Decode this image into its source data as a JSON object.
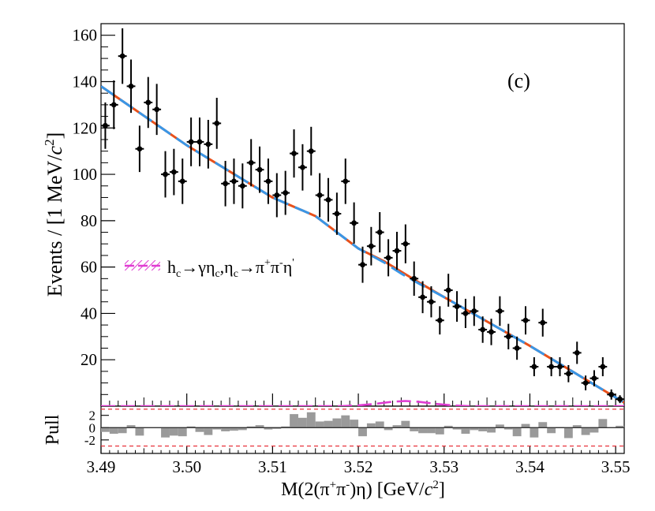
{
  "chart_data": {
    "type": "scatter",
    "panel_label": "(c)",
    "ylabel_main": "Events / [1 MeV/",
    "ylabel_c": "c",
    "ylabel_exp": "2",
    "ylabel_close": "]",
    "xlabel_base": "M(2(",
    "xlabel_pi1": "π",
    "xlabel_plus": "+",
    "xlabel_pi2": "π",
    "xlabel_minus": "-",
    "xlabel_eta": ")η) [GeV/",
    "xlabel_c": "c",
    "xlabel_exp": "2",
    "xlabel_close": "]",
    "pull_label": "Pull",
    "xlim": [
      3.49,
      3.551
    ],
    "ylim": [
      0,
      165
    ],
    "pull_ylim": [
      -4.2,
      3.5
    ],
    "x_ticks": [
      3.49,
      3.5,
      3.51,
      3.52,
      3.53,
      3.54,
      3.55
    ],
    "x_tick_labels": [
      "3.49",
      "3.50",
      "3.51",
      "3.52",
      "3.53",
      "3.54",
      "3.55"
    ],
    "y_ticks": [
      20,
      40,
      60,
      80,
      100,
      120,
      140,
      160
    ],
    "y_tick_labels": [
      "20",
      "40",
      "60",
      "80",
      "100",
      "120",
      "140",
      "160"
    ],
    "pull_ticks": [
      2,
      0,
      -2
    ],
    "pull_tick_labels": [
      "2",
      "0",
      "-2"
    ],
    "pull_ref_lines": [
      3,
      -3
    ],
    "legend": {
      "h": "h",
      "h_sub": "c",
      "arrow1": "→γη",
      "eta_sub": "c",
      "mid": ",η",
      "eta2_sub": "c",
      "arrow2": "→π",
      "sup1": "+",
      "pi": "π",
      "sup2": "-",
      "eta": "η",
      "sup3": "'"
    },
    "series": [
      {
        "name": "data",
        "x": [
          3.4905,
          3.4915,
          3.4925,
          3.4935,
          3.4945,
          3.4955,
          3.4965,
          3.4975,
          3.4985,
          3.4995,
          3.5005,
          3.5015,
          3.5025,
          3.5035,
          3.5045,
          3.5055,
          3.5065,
          3.5075,
          3.5085,
          3.5095,
          3.5105,
          3.5115,
          3.5125,
          3.5135,
          3.5145,
          3.5155,
          3.5165,
          3.5175,
          3.5185,
          3.5195,
          3.5205,
          3.5215,
          3.5225,
          3.5235,
          3.5245,
          3.5255,
          3.5265,
          3.5275,
          3.5285,
          3.5295,
          3.5305,
          3.5315,
          3.5325,
          3.5335,
          3.5345,
          3.5355,
          3.5365,
          3.5375,
          3.5385,
          3.5395,
          3.5405,
          3.5415,
          3.5425,
          3.5435,
          3.5445,
          3.5455,
          3.5465,
          3.5475,
          3.5485,
          3.5495,
          3.5505
        ],
        "y": [
          121,
          130,
          151,
          138,
          111,
          131,
          128,
          100,
          101,
          97,
          114,
          114,
          113,
          122,
          96,
          97,
          95,
          105,
          102,
          97,
          91,
          92,
          109,
          103,
          110,
          91,
          89,
          83,
          97,
          79,
          61,
          69,
          75,
          64,
          67,
          70,
          55,
          47,
          45,
          37,
          50,
          43,
          40,
          41,
          33,
          32,
          41,
          30,
          25,
          37,
          17,
          36,
          17,
          17,
          14,
          23,
          10,
          12,
          17,
          5,
          3
        ],
        "yerr": [
          10,
          10.5,
          12,
          11.5,
          10,
          11,
          11,
          10,
          10,
          9.8,
          10.5,
          10.5,
          10.5,
          11,
          9.8,
          9.8,
          9.7,
          10.2,
          10,
          9.8,
          9.5,
          9.5,
          10.4,
          10,
          10.5,
          9.5,
          9.4,
          9.1,
          9.8,
          8.9,
          7.8,
          8.3,
          8.7,
          8,
          8.2,
          8.4,
          7.4,
          6.9,
          6.7,
          6.1,
          7.1,
          6.6,
          6.3,
          6.4,
          5.7,
          5.7,
          6.4,
          5.5,
          5,
          6.1,
          4.1,
          6,
          4.1,
          4.1,
          3.7,
          4.8,
          3.2,
          3.5,
          4.1,
          2.2,
          1.7
        ]
      },
      {
        "name": "total_fit",
        "color": "#e8501a",
        "x": [
          3.49,
          3.5,
          3.51,
          3.515,
          3.52,
          3.523,
          3.525,
          3.527,
          3.53,
          3.54,
          3.551
        ],
        "y": [
          138,
          112.5,
          90,
          82,
          68,
          62.5,
          58,
          53.5,
          47,
          26,
          1.5
        ]
      },
      {
        "name": "background",
        "color": "#3a96e6",
        "x": [
          3.49,
          3.5,
          3.51,
          3.515,
          3.52,
          3.523,
          3.525,
          3.527,
          3.53,
          3.54,
          3.551
        ],
        "y": [
          138,
          112.5,
          90,
          82,
          68,
          62,
          57.2,
          53,
          47,
          26,
          1.5
        ]
      },
      {
        "name": "signal",
        "color": "#e03cd2",
        "x": [
          3.49,
          3.518,
          3.52,
          3.522,
          3.524,
          3.5255,
          3.527,
          3.529,
          3.531,
          3.533,
          3.551
        ],
        "y": [
          0,
          0,
          0.3,
          1,
          1.9,
          2.2,
          1.9,
          1,
          0.3,
          0,
          0
        ]
      }
    ],
    "pulls": {
      "x": [
        3.4905,
        3.4915,
        3.4925,
        3.4935,
        3.4945,
        3.4955,
        3.4965,
        3.4975,
        3.4985,
        3.4995,
        3.5005,
        3.5015,
        3.5025,
        3.5035,
        3.5045,
        3.5055,
        3.5065,
        3.5075,
        3.5085,
        3.5095,
        3.5105,
        3.5115,
        3.5125,
        3.5135,
        3.5145,
        3.5155,
        3.5165,
        3.5175,
        3.5185,
        3.5195,
        3.5205,
        3.5215,
        3.5225,
        3.5235,
        3.5245,
        3.5255,
        3.5265,
        3.5275,
        3.5285,
        3.5295,
        3.5305,
        3.5315,
        3.5325,
        3.5335,
        3.5345,
        3.5355,
        3.5365,
        3.5375,
        3.5385,
        3.5395,
        3.5405,
        3.5415,
        3.5425,
        3.5435,
        3.5445,
        3.5455,
        3.5465,
        3.5475,
        3.5485,
        3.5495,
        3.5505
      ],
      "values": [
        -0.7,
        -1.0,
        -0.9,
        0.4,
        -1.3,
        -0.1,
        -0.1,
        -1.6,
        -1.3,
        -1.4,
        0.2,
        -0.7,
        -1.2,
        -0.3,
        -0.6,
        -0.5,
        -0.4,
        0.2,
        0.4,
        -0.3,
        -0.2,
        0.2,
        2.2,
        1.6,
        2.5,
        1.0,
        1.1,
        1.5,
        2.0,
        1.3,
        -1.4,
        0.7,
        1.0,
        -0.4,
        0.4,
        1.1,
        -0.6,
        -0.9,
        -0.9,
        -1.1,
        0.3,
        -0.3,
        -1.0,
        -0.4,
        -0.6,
        -0.8,
        0.5,
        -0.3,
        -1.4,
        0.6,
        -1.6,
        0.9,
        -0.9,
        0.1,
        -1.7,
        0.4,
        -1.2,
        -0.8,
        1.4,
        0.0,
        0.3
      ],
      "color": "#9a9a9a"
    }
  }
}
